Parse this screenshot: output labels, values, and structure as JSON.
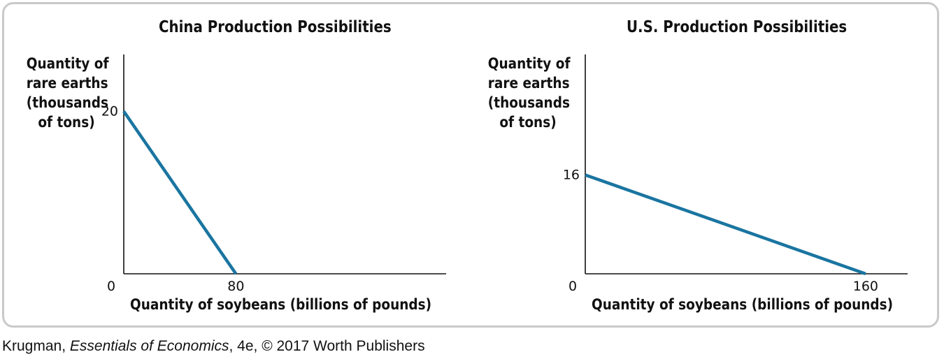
{
  "credit": {
    "author": "Krugman, ",
    "book": "Essentials of Economics",
    "rest": ", 4e, © 2017 Worth Publishers"
  },
  "chart_data": [
    {
      "type": "line",
      "title": "China Production Possibilities",
      "xlabel": "Quantity of soybeans (billions of pounds)",
      "ylabel": "Quantity of\nrare earths\n(thousands\nof tons)",
      "x_ticks": [
        "0",
        "80"
      ],
      "y_ticks": [
        "20"
      ],
      "xlim": [
        0,
        230
      ],
      "ylim": [
        0,
        27
      ],
      "line_color": "#1a75a0",
      "series": [
        {
          "x": [
            0,
            80
          ],
          "y": [
            20,
            0
          ]
        }
      ]
    },
    {
      "type": "line",
      "title": "U.S. Production Possibilities",
      "xlabel": "Quantity of soybeans (billions of pounds)",
      "ylabel": "Quantity of\nrare earths\n(thousands\nof tons)",
      "x_ticks": [
        "0",
        "160"
      ],
      "y_ticks": [
        "16"
      ],
      "xlim": [
        0,
        184
      ],
      "ylim": [
        0,
        35.5
      ],
      "line_color": "#1a75a0",
      "series": [
        {
          "x": [
            0,
            160
          ],
          "y": [
            16,
            0
          ]
        }
      ]
    }
  ]
}
